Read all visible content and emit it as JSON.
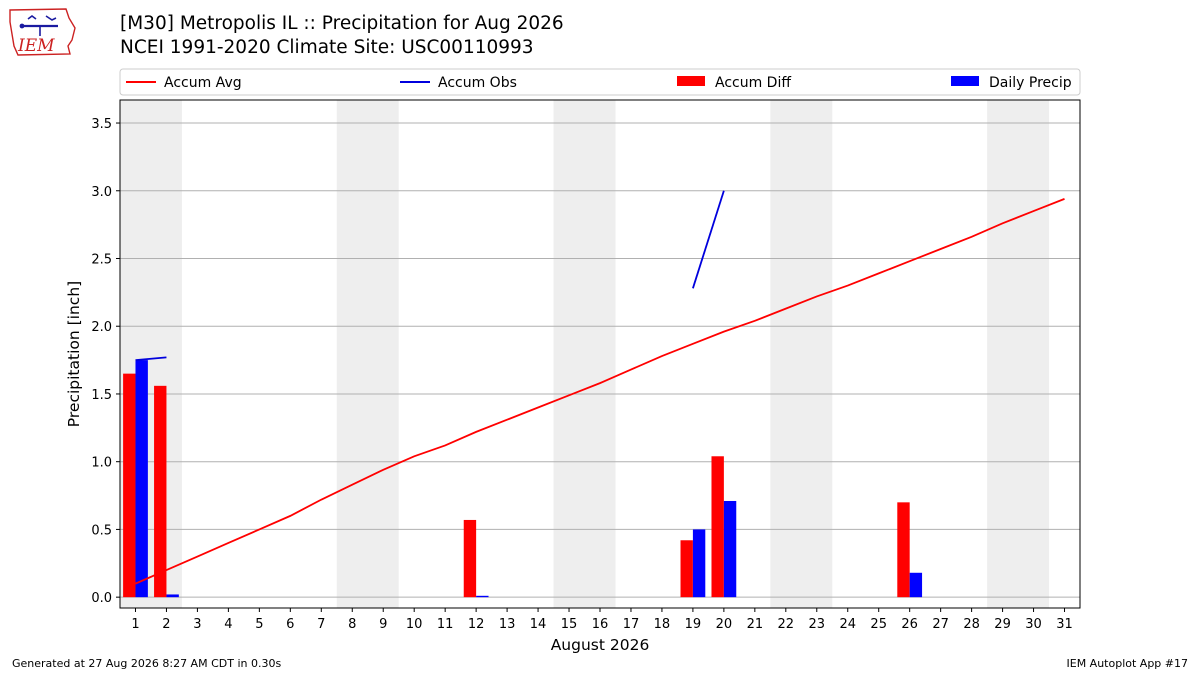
{
  "header": {
    "title_line1": "[M30] Metropolis  IL :: Precipitation for Aug 2026",
    "title_line2": "NCEI 1991-2020 Climate Site: USC00110993",
    "logo_text": "IEM"
  },
  "footer": {
    "left": "Generated at 27 Aug 2026 8:27 AM CDT in 0.30s",
    "right": "IEM Autoplot App #17"
  },
  "colors": {
    "avg": "#ff0000",
    "obs": "#0000dd",
    "diff": "#ff0000",
    "daily": "#0000ff",
    "weekend": "#eeeeee",
    "grid": "#b0b0b0"
  },
  "chart_data": {
    "type": "bar",
    "xlabel": "August 2026",
    "ylabel": "Precipitation [inch]",
    "xlim": [
      0.5,
      31.5
    ],
    "ylim": [
      -0.08,
      3.67
    ],
    "yticks": [
      0.0,
      0.5,
      1.0,
      1.5,
      2.0,
      2.5,
      3.0,
      3.5
    ],
    "ytick_labels": [
      "0.0",
      "0.5",
      "1.0",
      "1.5",
      "2.0",
      "2.5",
      "3.0",
      "3.5"
    ],
    "days": [
      1,
      2,
      3,
      4,
      5,
      6,
      7,
      8,
      9,
      10,
      11,
      12,
      13,
      14,
      15,
      16,
      17,
      18,
      19,
      20,
      21,
      22,
      23,
      24,
      25,
      26,
      27,
      28,
      29,
      30,
      31
    ],
    "weekend_spans": [
      [
        0.5,
        2.5
      ],
      [
        7.5,
        9.5
      ],
      [
        14.5,
        16.5
      ],
      [
        21.5,
        23.5
      ],
      [
        28.5,
        30.5
      ]
    ],
    "grid": "horizontal",
    "legend_position": "top, above plot",
    "legend": [
      "Accum Avg",
      "Accum Obs",
      "Accum Diff",
      "Daily Precip"
    ],
    "series": [
      {
        "name": "Accum Avg",
        "kind": "line",
        "x": [
          1,
          2,
          3,
          4,
          5,
          6,
          7,
          8,
          9,
          10,
          11,
          12,
          13,
          14,
          15,
          16,
          17,
          18,
          19,
          20,
          21,
          22,
          23,
          24,
          25,
          26,
          27,
          28,
          29,
          30,
          31
        ],
        "values": [
          0.1,
          0.2,
          0.3,
          0.4,
          0.5,
          0.6,
          0.72,
          0.83,
          0.94,
          1.04,
          1.12,
          1.22,
          1.31,
          1.4,
          1.49,
          1.58,
          1.68,
          1.78,
          1.87,
          1.96,
          2.04,
          2.13,
          2.22,
          2.3,
          2.39,
          2.48,
          2.57,
          2.66,
          2.76,
          2.85,
          2.94
        ]
      },
      {
        "name": "Accum Obs",
        "kind": "line",
        "segments": [
          {
            "x": [
              1,
              2
            ],
            "values": [
              1.75,
              1.77
            ]
          },
          {
            "x": [
              19,
              20
            ],
            "values": [
              2.28,
              3.0
            ]
          }
        ]
      },
      {
        "name": "Accum Diff",
        "kind": "bar",
        "x": [
          1,
          2,
          12,
          19,
          20,
          26
        ],
        "values": [
          1.65,
          1.56,
          0.57,
          0.42,
          1.04,
          0.7
        ]
      },
      {
        "name": "Daily Precip",
        "kind": "bar",
        "x": [
          1,
          2,
          12,
          19,
          20,
          26
        ],
        "values": [
          1.75,
          0.02,
          0.01,
          0.5,
          0.71,
          0.18
        ]
      }
    ]
  }
}
